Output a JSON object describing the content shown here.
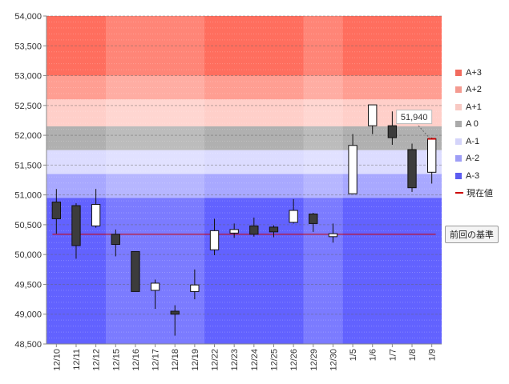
{
  "chart_data": {
    "type": "candlestick",
    "ylim": [
      48500,
      54000
    ],
    "ytick_step": 500,
    "categories": [
      "12/10",
      "12/11",
      "12/12",
      "12/15",
      "12/16",
      "12/17",
      "12/18",
      "12/19",
      "12/22",
      "12/23",
      "12/24",
      "12/25",
      "12/26",
      "12/29",
      "12/30",
      "1/5",
      "1/6",
      "1/7",
      "1/8",
      "1/9"
    ],
    "candles": [
      {
        "open": 50880,
        "close": 50600,
        "high": 51100,
        "low": 50350
      },
      {
        "open": 50820,
        "close": 50150,
        "high": 50860,
        "low": 49930
      },
      {
        "open": 50480,
        "close": 50840,
        "high": 51100,
        "low": 50450
      },
      {
        "open": 50340,
        "close": 50170,
        "high": 50420,
        "low": 49970
      },
      {
        "open": 50050,
        "close": 49380,
        "high": 50050,
        "low": 49380
      },
      {
        "open": 49400,
        "close": 49520,
        "high": 49580,
        "low": 49090
      },
      {
        "open": 49050,
        "close": 49000,
        "high": 49150,
        "low": 48640
      },
      {
        "open": 49380,
        "close": 49490,
        "high": 49750,
        "low": 49250
      },
      {
        "open": 50080,
        "close": 50400,
        "high": 50600,
        "low": 49990
      },
      {
        "open": 50360,
        "close": 50420,
        "high": 50520,
        "low": 50280
      },
      {
        "open": 50480,
        "close": 50340,
        "high": 50620,
        "low": 50300
      },
      {
        "open": 50460,
        "close": 50380,
        "high": 50490,
        "low": 50290
      },
      {
        "open": 50540,
        "close": 50740,
        "high": 50930,
        "low": 50520
      },
      {
        "open": 50680,
        "close": 50520,
        "high": 50700,
        "low": 50380
      },
      {
        "open": 50300,
        "close": 50350,
        "high": 50520,
        "low": 50200
      },
      {
        "open": 51020,
        "close": 51830,
        "high": 52020,
        "low": 51020
      },
      {
        "open": 52160,
        "close": 52510,
        "high": 52510,
        "low": 52020
      },
      {
        "open": 52160,
        "close": 51960,
        "high": 52400,
        "low": 51840
      },
      {
        "open": 51760,
        "close": 51120,
        "high": 51860,
        "low": 51050
      },
      {
        "open": 51380,
        "close": 51940,
        "high": 51960,
        "low": 51190
      }
    ],
    "bands": [
      {
        "name": "A+3",
        "from": 53000,
        "to": 54000,
        "color": "#ff6e5e"
      },
      {
        "name": "A+2",
        "from": 52600,
        "to": 53000,
        "color": "#ff9e92"
      },
      {
        "name": "A+1",
        "from": 52150,
        "to": 52600,
        "color": "#ffcfc9"
      },
      {
        "name": "A 0",
        "from": 51750,
        "to": 52150,
        "color": "#b0b0b0"
      },
      {
        "name": "A-1",
        "from": 51350,
        "to": 51750,
        "color": "#dcdcff"
      },
      {
        "name": "A-2",
        "from": 50950,
        "to": 51350,
        "color": "#a8a8ff"
      },
      {
        "name": "A-3",
        "from": 48500,
        "to": 50950,
        "color": "#6262ff"
      }
    ],
    "reference_line": {
      "value": 50340,
      "color": "#cc0000"
    },
    "current": {
      "value": 51940,
      "label": "51,940",
      "color": "#cc0000"
    },
    "week_groups": [
      [
        0,
        2
      ],
      [
        3,
        7
      ],
      [
        8,
        12
      ],
      [
        13,
        14
      ],
      [
        15,
        19
      ]
    ],
    "legend": [
      {
        "name": "A+3",
        "color": "#f26b5e"
      },
      {
        "name": "A+2",
        "color": "#f49a90"
      },
      {
        "name": "A+1",
        "color": "#f8c9c3"
      },
      {
        "name": "A 0",
        "color": "#aaaaaa"
      },
      {
        "name": "A-1",
        "color": "#d4d4fa"
      },
      {
        "name": "A-2",
        "color": "#9e9ef6"
      },
      {
        "name": "A-3",
        "color": "#5c5cf0"
      },
      {
        "name": "現在値",
        "color": "#cc0000",
        "line": true
      }
    ],
    "button_label": "前回の基準"
  }
}
